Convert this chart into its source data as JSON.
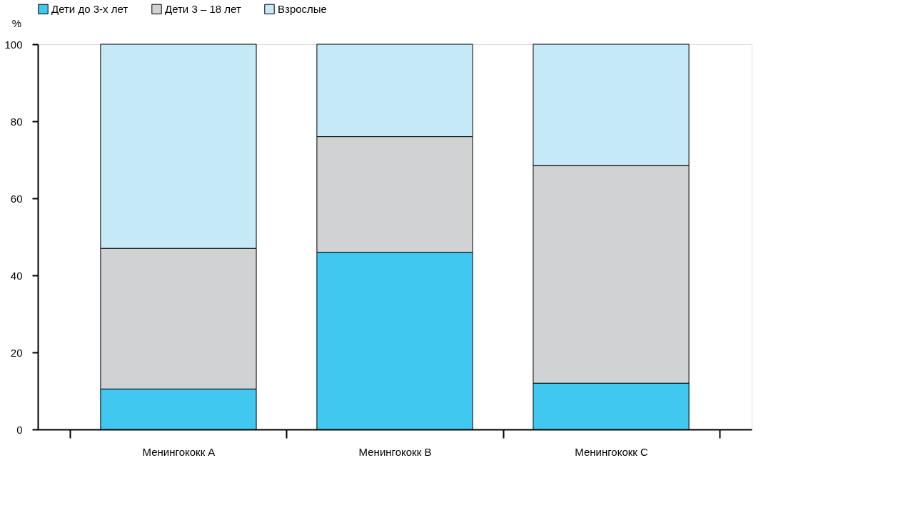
{
  "chart_data": {
    "type": "bar",
    "stacked": true,
    "ylabel": "%",
    "categories": [
      "Менингококк A",
      "Менингококк B",
      "Менингококк C"
    ],
    "series": [
      {
        "name": "Дети до 3-х лет",
        "color": "#40c8f0",
        "values": [
          10.5,
          46,
          12
        ]
      },
      {
        "name": "Дети 3 – 18 лет",
        "color": "#d1d2d4",
        "values": [
          36.5,
          30,
          56.5
        ]
      },
      {
        "name": "Взрослые",
        "color": "#c5e9f7",
        "values": [
          53,
          24,
          31.5
        ]
      }
    ],
    "ylim": [
      0,
      100
    ],
    "yticks": [
      0,
      20,
      40,
      60,
      80,
      100
    ],
    "grid": false,
    "legend": "top left"
  }
}
